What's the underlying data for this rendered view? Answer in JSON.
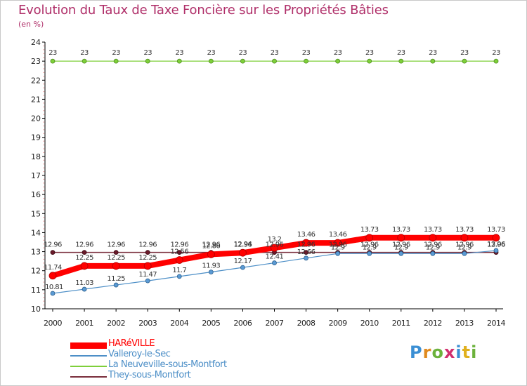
{
  "title": "Evolution du Taux de Taxe Foncière sur les Propriétés Bâties",
  "unit": "(en %)",
  "logo": {
    "l1": "P",
    "l2": "r",
    "l3": "o",
    "l4": "x",
    "l5": "i",
    "l6": "t",
    "l7": "i"
  },
  "chart_data": {
    "type": "line",
    "title": "Evolution du Taux de Taxe Foncière sur les Propriétés Bâties",
    "ylabel": "(en %)",
    "xlabel": "",
    "x": [
      2000,
      2001,
      2002,
      2003,
      2004,
      2005,
      2006,
      2007,
      2008,
      2009,
      2010,
      2011,
      2012,
      2013,
      2014
    ],
    "y_ticks": [
      10,
      11,
      12,
      13,
      14,
      15,
      16,
      17,
      18,
      19,
      20,
      21,
      22,
      23,
      24
    ],
    "ylim": [
      10,
      24
    ],
    "grid": false,
    "legend_position": "bottom-left",
    "series": [
      {
        "name": "They-sous-Montfort",
        "color": "#7a2e3c",
        "values": [
          12.96,
          12.96,
          12.96,
          12.96,
          12.96,
          12.96,
          12.96,
          12.96,
          12.96,
          12.96,
          12.96,
          12.96,
          12.96,
          12.96,
          12.96
        ],
        "labels": [
          "12.96",
          "12.96",
          "12.96",
          "12.96",
          "12.96",
          "12.96",
          "12.96",
          "12.96",
          "12.96",
          "12.96",
          "12.96",
          "12.96",
          "12.96",
          "12.96",
          "12.96"
        ]
      },
      {
        "name": "Valleroy-le-Sec",
        "color": "#4d8fc7",
        "values": [
          10.81,
          11.03,
          11.25,
          11.47,
          11.7,
          11.93,
          12.17,
          12.41,
          12.66,
          12.9,
          12.9,
          12.9,
          12.9,
          12.9,
          13.06
        ],
        "labels": [
          "10.81",
          "11.03",
          "11.25",
          "11.47",
          "11.7",
          "11.93",
          "12.17",
          "12.41",
          "12.66",
          "12.9",
          "12.9",
          "12.9",
          "12.9",
          "12.9",
          "13.06"
        ]
      },
      {
        "name": "La Neuveville-sous-Montfort",
        "color": "#7ecf3a",
        "values": [
          23,
          23,
          23,
          23,
          23,
          23,
          23,
          23,
          23,
          23,
          23,
          23,
          23,
          23,
          23
        ],
        "labels": [
          "23",
          "23",
          "23",
          "23",
          "23",
          "23",
          "23",
          "23",
          "23",
          "23",
          "23",
          "23",
          "23",
          "23",
          "23"
        ]
      },
      {
        "name": "HARéVILLE",
        "color": "#ff0000",
        "values": [
          11.74,
          12.25,
          12.25,
          12.25,
          12.56,
          12.86,
          12.94,
          13.2,
          13.46,
          13.46,
          13.73,
          13.73,
          13.73,
          13.73,
          13.73
        ],
        "labels": [
          "11.74",
          "12.25",
          "12.25",
          "12.25",
          "12.56",
          "12.86",
          "12.94",
          "13.2",
          "13.46",
          "13.46",
          "13.73",
          "13.73",
          "13.73",
          "13.73",
          "13.73"
        ]
      }
    ],
    "legend_order": [
      "HARéVILLE",
      "Valleroy-le-Sec",
      "La Neuveville-sous-Montfort",
      "They-sous-Montfort"
    ]
  }
}
